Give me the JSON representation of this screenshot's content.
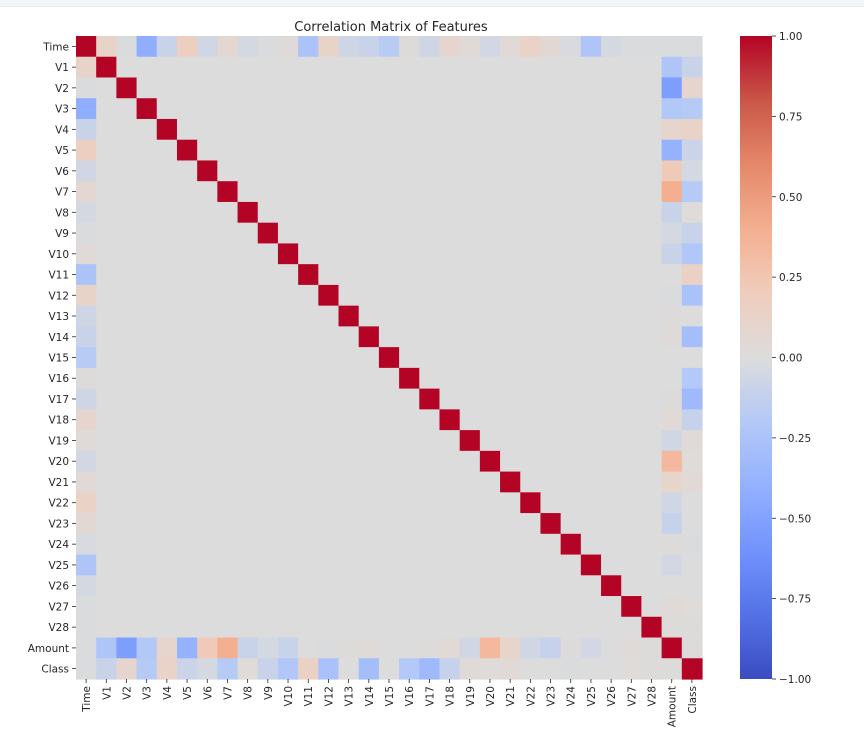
{
  "chart_data": {
    "type": "heatmap",
    "title": "Correlation Matrix of Features",
    "xlabel": "",
    "ylabel": "",
    "labels": [
      "Time",
      "V1",
      "V2",
      "V3",
      "V4",
      "V5",
      "V6",
      "V7",
      "V8",
      "V9",
      "V10",
      "V11",
      "V12",
      "V13",
      "V14",
      "V15",
      "V16",
      "V17",
      "V18",
      "V19",
      "V20",
      "V21",
      "V22",
      "V23",
      "V24",
      "V25",
      "V26",
      "V27",
      "V28",
      "Amount",
      "Class"
    ],
    "colormap": "coolwarm",
    "vmin": -1.0,
    "vmax": 1.0,
    "colorbar_ticks": [
      -1.0,
      -0.75,
      -0.5,
      -0.25,
      0.0,
      0.25,
      0.5,
      0.75,
      1.0
    ],
    "colorbar_tick_labels": [
      "−1.00",
      "−0.75",
      "−0.50",
      "−0.25",
      "0.00",
      "0.25",
      "0.50",
      "0.75",
      "1.00"
    ],
    "time_corr": [
      1.0,
      0.12,
      -0.01,
      -0.42,
      -0.1,
      0.17,
      -0.06,
      0.08,
      -0.04,
      -0.01,
      0.03,
      -0.25,
      0.12,
      -0.07,
      -0.1,
      -0.18,
      0.01,
      -0.07,
      0.09,
      0.03,
      -0.05,
      0.04,
      0.14,
      0.05,
      -0.02,
      -0.23,
      -0.04,
      -0.01,
      -0.01,
      -0.01,
      -0.01
    ],
    "amount_corr": [
      -0.01,
      -0.23,
      -0.53,
      -0.21,
      0.1,
      -0.39,
      0.22,
      0.4,
      -0.1,
      -0.04,
      -0.1,
      0.0,
      -0.01,
      0.01,
      0.03,
      -0.0,
      -0.0,
      0.01,
      0.04,
      -0.06,
      0.34,
      0.11,
      -0.06,
      -0.11,
      0.01,
      -0.05,
      -0.0,
      0.03,
      0.01,
      1.0,
      0.01
    ],
    "class_corr": [
      -0.01,
      -0.1,
      0.09,
      -0.19,
      0.13,
      -0.09,
      -0.04,
      -0.19,
      0.02,
      -0.1,
      -0.22,
      0.15,
      -0.26,
      -0.0,
      -0.3,
      -0.0,
      -0.2,
      -0.33,
      -0.11,
      0.03,
      0.02,
      0.04,
      0.0,
      -0.0,
      -0.01,
      0.0,
      0.0,
      0.02,
      0.01,
      0.01,
      1.0
    ]
  }
}
